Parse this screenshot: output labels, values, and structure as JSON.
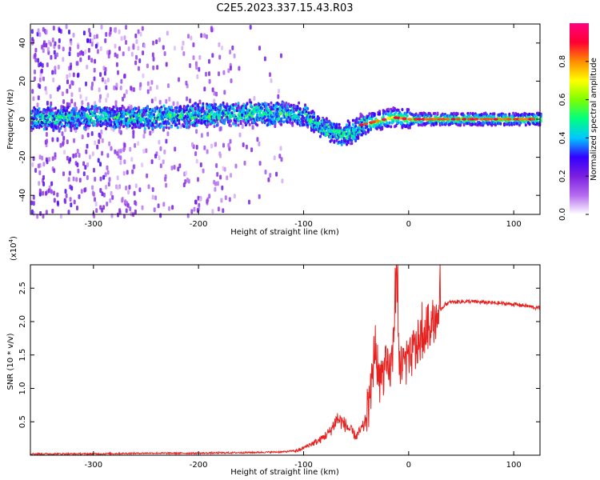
{
  "title": "C2E5.2023.337.15.43.R03",
  "chart_data": [
    {
      "type": "heatmap",
      "xlabel": "Height of straight line (km)",
      "ylabel": "Frequency (Hz)",
      "xlim": [
        -360,
        125
      ],
      "ylim": [
        -50,
        50
      ],
      "x_ticks": [
        -300,
        -200,
        -100,
        0,
        100
      ],
      "y_ticks": [
        -40,
        -20,
        0,
        20,
        40
      ],
      "colorbar": {
        "label": "Normalized spectral amplitude",
        "range": [
          0,
          1
        ],
        "ticks": [
          0.0,
          0.2,
          0.4,
          0.6,
          0.8
        ],
        "colors": [
          "#ffffff",
          "#b56cf0",
          "#7b1fe0",
          "#3300ff",
          "#00c8ff",
          "#00ff80",
          "#7dff00",
          "#ffff00",
          "#ff8c00",
          "#ff0033",
          "#ff0080"
        ]
      },
      "band_center": [
        {
          "x": -360,
          "f": 0
        },
        {
          "x": -300,
          "f": 1
        },
        {
          "x": -250,
          "f": 1
        },
        {
          "x": -200,
          "f": 2
        },
        {
          "x": -150,
          "f": 3
        },
        {
          "x": -120,
          "f": 3
        },
        {
          "x": -100,
          "f": 2
        },
        {
          "x": -90,
          "f": -2
        },
        {
          "x": -80,
          "f": -5
        },
        {
          "x": -65,
          "f": -8
        },
        {
          "x": -55,
          "f": -7
        },
        {
          "x": -45,
          "f": -3
        },
        {
          "x": -30,
          "f": -1
        },
        {
          "x": -15,
          "f": 1
        },
        {
          "x": 0,
          "f": 0
        },
        {
          "x": 50,
          "f": 0
        },
        {
          "x": 125,
          "f": 0
        }
      ]
    },
    {
      "type": "line",
      "xlabel": "Height of straight line (km)",
      "ylabel": "SNR (10 * v/v)",
      "y_multiplier": "(x10",
      "y_multiplier_exp": "4",
      "y_multiplier_close": ")",
      "xlim": [
        -360,
        125
      ],
      "ylim": [
        0,
        2.85
      ],
      "x_ticks": [
        -300,
        -200,
        -100,
        0,
        100
      ],
      "y_ticks": [
        0.5,
        1.0,
        1.5,
        2.0,
        2.5
      ],
      "y_tick_labels": [
        "0.5",
        "1.0",
        "1.5",
        "2.0",
        "2.5"
      ],
      "color": "#e8201e",
      "series": [
        {
          "name": "SNR",
          "points": [
            [
              -360,
              0.02
            ],
            [
              -300,
              0.02
            ],
            [
              -250,
              0.03
            ],
            [
              -200,
              0.03
            ],
            [
              -150,
              0.04
            ],
            [
              -120,
              0.05
            ],
            [
              -105,
              0.07
            ],
            [
              -95,
              0.15
            ],
            [
              -85,
              0.22
            ],
            [
              -75,
              0.35
            ],
            [
              -68,
              0.55
            ],
            [
              -60,
              0.45
            ],
            [
              -50,
              0.28
            ],
            [
              -42,
              0.45
            ],
            [
              -36,
              0.9
            ],
            [
              -32,
              1.7
            ],
            [
              -28,
              1.1
            ],
            [
              -22,
              1.3
            ],
            [
              -18,
              1.25
            ],
            [
              -15,
              1.5
            ],
            [
              -12,
              2.85
            ],
            [
              -9,
              1.4
            ],
            [
              -5,
              1.4
            ],
            [
              0,
              1.35
            ],
            [
              5,
              1.6
            ],
            [
              10,
              1.7
            ],
            [
              15,
              1.85
            ],
            [
              20,
              1.95
            ],
            [
              25,
              2.05
            ],
            [
              30,
              2.18
            ],
            [
              35,
              2.26
            ],
            [
              40,
              2.29
            ],
            [
              50,
              2.3
            ],
            [
              60,
              2.3
            ],
            [
              70,
              2.29
            ],
            [
              80,
              2.28
            ],
            [
              90,
              2.27
            ],
            [
              100,
              2.26
            ],
            [
              110,
              2.24
            ],
            [
              120,
              2.21
            ],
            [
              125,
              2.2
            ]
          ]
        }
      ]
    }
  ]
}
